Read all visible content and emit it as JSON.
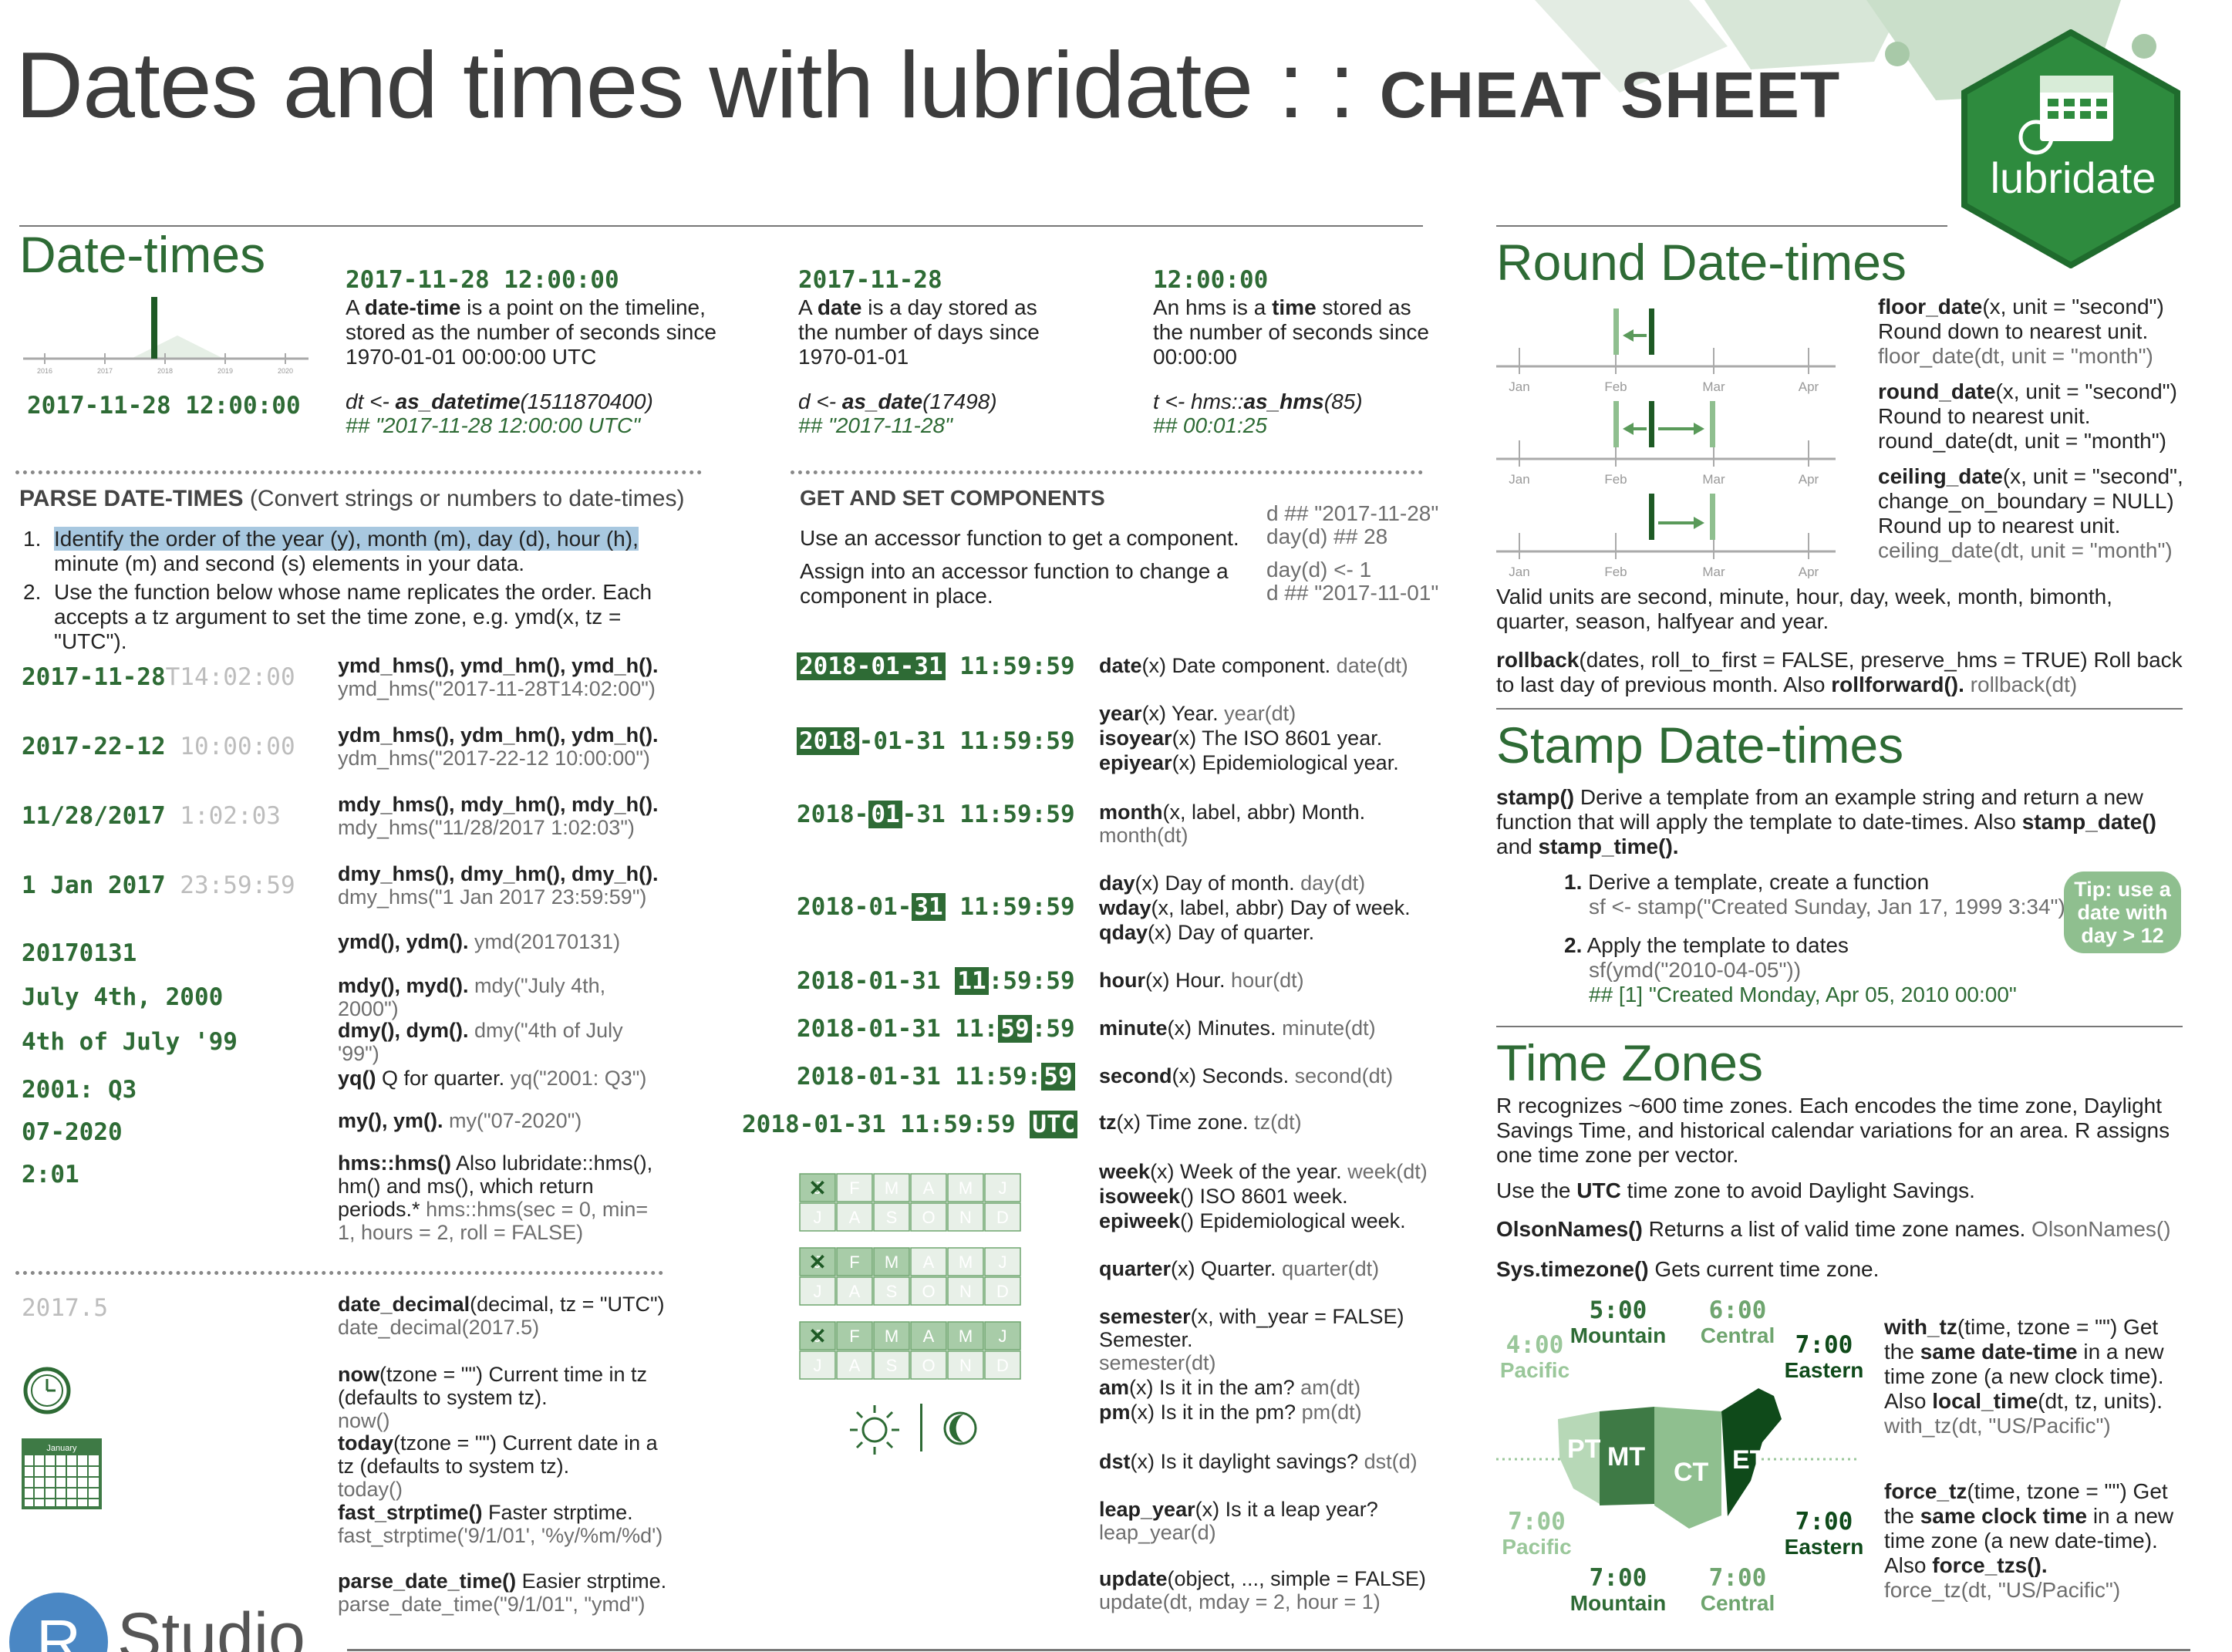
{
  "header": {
    "title_main": "Dates and times with lubridate : : ",
    "title_bold": "CHEAT SHEET",
    "logo_text": "lubridate"
  },
  "datetimes": {
    "heading": "Date-times",
    "timeline_ticks": [
      "2016",
      "2017",
      "2018",
      "2019",
      "2020"
    ],
    "left_example": "2017-11-28 12:00:00",
    "dt": {
      "example": "2017-11-28 12:00:00",
      "desc_a": "A ",
      "desc_b": "date-time",
      "desc_c": " is a point on the timeline, stored as the number of seconds since 1970-01-01 00:00:00 UTC",
      "code_a": "dt <- ",
      "code_b": "as_datetime",
      "code_c": "(1511870400)",
      "result": "## \"2017-11-28 12:00:00 UTC\""
    },
    "d": {
      "example": "2017-11-28",
      "desc_a": "A ",
      "desc_b": "date",
      "desc_c": " is a day stored as the number of days since 1970-01-01",
      "code_a": "d <- ",
      "code_b": "as_date",
      "code_c": "(17498)",
      "result": "## \"2017-11-28\""
    },
    "t": {
      "example": "12:00:00",
      "desc_a": "An hms is a ",
      "desc_b": "time",
      "desc_c": " stored as the number of seconds since 00:00:00",
      "code_a": "t <- hms::",
      "code_b": "as_hms",
      "code_c": "(85)",
      "result": "## 00:01:25"
    }
  },
  "parse": {
    "heading_bold": "PARSE DATE-TIMES",
    "heading_rest": " (Convert strings or numbers to date-times)",
    "step1_num": "1.",
    "step1_hl": "Identify the order of the year (y), month (m), day (d), hour (h),",
    "step1_rest": "minute (m) and second (s) elements in your data.",
    "step2_num": "2.",
    "step2": "Use the function below whose name replicates the order. Each accepts a tz argument to set the time zone, e.g. ymd(x, tz = \"UTC\").",
    "rows": [
      {
        "s1": "2017-11-28",
        "s2": "T14:02:00",
        "fn": "ymd_hms(), ymd_hm(), ymd_h().",
        "ex": "ymd_hms(\"2017-11-28T14:02:00\")"
      },
      {
        "s1": "2017-22-12",
        "s2": " 10:00:00",
        "fn": "ydm_hms(), ydm_hm(), ydm_h().",
        "ex": "ydm_hms(\"2017-22-12 10:00:00\")"
      },
      {
        "s1": "11/28/2017",
        "s2": " 1:02:03",
        "fn": "mdy_hms(), mdy_hm(), mdy_h().",
        "ex": "mdy_hms(\"11/28/2017 1:02:03\")"
      },
      {
        "s1": "1 Jan 2017",
        "s2": " 23:59:59",
        "fn": "dmy_hms(), dmy_hm(), dmy_h().",
        "ex": "dmy_hms(\"1 Jan 2017 23:59:59\")"
      },
      {
        "s1": "20170131",
        "s2": "",
        "fn": "ymd(), ydm().",
        "ex": "ymd(20170131)"
      },
      {
        "s1": "July 4th, 2000",
        "s2": "",
        "fn": "mdy(), myd().",
        "ex": "mdy(\"July 4th, 2000\")"
      },
      {
        "s1": "4th of July '99",
        "s2": "",
        "fn": "dmy(), dym().",
        "ex": "dmy(\"4th of July '99\")"
      },
      {
        "s1": "2001: Q3",
        "s2": "",
        "fn": "yq()",
        "fn_rest": " Q for quarter.",
        "ex": "yq(\"2001: Q3\")"
      },
      {
        "s1": "07-2020",
        "s2": "",
        "fn": "my(), ym().",
        "ex": "my(\"07-2020\")"
      },
      {
        "s1": "2:01",
        "s2": "",
        "fn": "hms::hms()",
        "fn_rest": " Also lubridate::hms(), hm() and ms(), which return periods.*",
        "ex": "hms::hms(sec = 0, min= 1, hours = 2, roll = FALSE)"
      }
    ],
    "extra": [
      {
        "fn": "date_decimal",
        "args": "(decimal, tz = \"UTC\")",
        "ex": "date_decimal(2017.5)"
      },
      {
        "fn": "now",
        "args": "(tzone = \"\")",
        "desc": " Current time in tz (defaults to system tz).",
        "ex": "now()"
      },
      {
        "fn": "today",
        "args": "(tzone = \"\")",
        "desc": " Current date in a tz (defaults to system tz).",
        "ex": "today()"
      },
      {
        "fn": "fast_strptime()",
        "args": "",
        "desc": " Faster strptime.",
        "ex": "fast_strptime('9/1/01', '%y/%m/%d')"
      },
      {
        "fn": "parse_date_time()",
        "args": "",
        "desc": " Easier strptime.",
        "ex": "parse_date_time(\"9/1/01\", \"ymd\")"
      }
    ],
    "decimal_example": "2017.5",
    "calendar_month": "January",
    "rstudio": "Studio",
    "rstudio_r": "R"
  },
  "components": {
    "heading": "GET AND SET COMPONENTS",
    "line1": "Use an accessor function to get a component.",
    "line2": "Assign into an accessor function to change a component in place.",
    "side1": "d ## \"2017-11-28\"",
    "side2": "day(d) ## 28",
    "side3": "day(d) <- 1",
    "side4": "d ## \"2017-11-01\"",
    "rows": [
      {
        "fn": "date",
        "args": "(x)",
        "desc": " Date component.",
        "ex": "date(dt)"
      },
      {
        "fn": "year",
        "args": "(x)",
        "desc": " Year.",
        "ex": "year(dt)"
      },
      {
        "fn": "isoyear",
        "args": "(x)",
        "desc": " The ISO 8601 year.",
        "ex": ""
      },
      {
        "fn": "epiyear",
        "args": "(x)",
        "desc": " Epidemiological year.",
        "ex": ""
      },
      {
        "fn": "month",
        "args": "(x, label, abbr)",
        "desc": " Month.",
        "ex": "month(dt)"
      },
      {
        "fn": "day",
        "args": "(x)",
        "desc": " Day of month.",
        "ex": "day(dt)"
      },
      {
        "fn": "wday",
        "args": "(x, label, abbr)",
        "desc": " Day of week.",
        "ex": ""
      },
      {
        "fn": "qday",
        "args": "(x)",
        "desc": " Day of quarter.",
        "ex": ""
      },
      {
        "fn": "hour",
        "args": "(x)",
        "desc": " Hour.",
        "ex": "hour(dt)"
      },
      {
        "fn": "minute",
        "args": "(x)",
        "desc": " Minutes.",
        "ex": "minute(dt)"
      },
      {
        "fn": "second",
        "args": "(x)",
        "desc": " Seconds.",
        "ex": "second(dt)"
      },
      {
        "fn": "tz",
        "args": "(x)",
        "desc": " Time zone.",
        "ex": "tz(dt)"
      },
      {
        "fn": "week",
        "args": "(x)",
        "desc": " Week of the year.",
        "ex": "week(dt)"
      },
      {
        "fn": "isoweek",
        "args": "()",
        "desc": " ISO 8601 week.",
        "ex": ""
      },
      {
        "fn": "epiweek",
        "args": "()",
        "desc": " Epidemiological week.",
        "ex": ""
      },
      {
        "fn": "quarter",
        "args": "(x)",
        "desc": " Quarter.",
        "ex": "quarter(dt)"
      },
      {
        "fn": "semester",
        "args": "(x, with_year = FALSE)",
        "desc": " Semester.",
        "ex": "semester(dt)"
      },
      {
        "fn": "am",
        "args": "(x)",
        "desc": " Is it in the am?",
        "ex": "am(dt)"
      },
      {
        "fn": "pm",
        "args": "(x)",
        "desc": " Is it in the pm?",
        "ex": "pm(dt)"
      },
      {
        "fn": "dst",
        "args": "(x)",
        "desc": " Is it daylight savings?",
        "ex": "dst(d)"
      },
      {
        "fn": "leap_year",
        "args": "(x)",
        "desc": " Is it a leap year?",
        "ex": "leap_year(d)"
      },
      {
        "fn": "update",
        "args": "(object, ..., simple = FALSE)",
        "desc": "",
        "ex": "update(dt, mday = 2, hour = 1)"
      }
    ],
    "stamp_date": "2018-01-31",
    "stamp_time": "11:59:59",
    "stamp_y": "2018",
    "stamp_ymrest": "-01-31",
    "stamp_m": "01",
    "stamp_d": "31",
    "stamp_h": "11",
    "stamp_mi": "59",
    "stamp_s": "59",
    "stamp_utc": "UTC",
    "stamp_full": "2018-01-31 11:59:59",
    "months_top": [
      "J",
      "F",
      "M",
      "A",
      "M",
      "J"
    ],
    "months_bottom": [
      "J",
      "A",
      "S",
      "O",
      "N",
      "D"
    ]
  },
  "round": {
    "heading": "Round Date-times",
    "axis_labels": [
      "Jan",
      "Feb",
      "Mar",
      "Apr"
    ],
    "f1_name": "floor_date",
    "f1_args": "(x, unit = \"second\")",
    "f1_desc": "Round down to nearest unit.",
    "f1_ex": "floor_date(dt, unit = \"month\")",
    "f2_name": "round_date",
    "f2_args": "(x, unit = \"second\")",
    "f2_desc": "Round to nearest unit.",
    "f2_ex": "round_date(dt, unit = \"month\")",
    "f3_name": "ceiling_date",
    "f3_args": "(x, unit = \"second\", change_on_boundary = NULL)",
    "f3_desc": "Round up to nearest unit.",
    "f3_ex": "ceiling_date(dt, unit = \"month\")",
    "units": "Valid units are second, minute, hour, day, week, month, bimonth, quarter, season, halfyear and year.",
    "rollback_fn": "rollback",
    "rollback_args": "(dates, roll_to_first = FALSE, preserve_hms = TRUE)",
    "rollback_desc": " Roll back to last day of previous month. Also ",
    "rollforward": "rollforward().",
    "rollback_ex": " rollback(dt)"
  },
  "stamp": {
    "heading": "Stamp Date-times",
    "intro_fn": "stamp()",
    "intro": " Derive a template from an example string and return a new function that will apply the template to date-times. Also ",
    "intro_fn2": "stamp_date()",
    "intro_and": " and ",
    "intro_fn3": "stamp_time().",
    "step1_num": "1.",
    "step1": "Derive a template, create a function",
    "step1_code": "sf <- stamp(\"Created Sunday, Jan 17, 1999 3:34\")",
    "step2_num": "2.",
    "step2": "Apply the template to dates",
    "step2_code": "sf(ymd(\"2010-04-05\"))",
    "step2_result": "## [1] \"Created Monday, Apr 05, 2010 00:00\"",
    "tip": "Tip: use a date with day > 12"
  },
  "timezones": {
    "heading": "Time Zones",
    "intro": "R recognizes ~600 time zones. Each encodes the time zone, Daylight Savings Time, and historical calendar variations for an area. R assigns one time zone per vector.",
    "utc_a": "Use the ",
    "utc_b": "UTC",
    "utc_c": " time zone to avoid Daylight Savings.",
    "olson_fn": "OlsonNames()",
    "olson_desc": " Returns a list of valid time zone names.",
    "olson_ex": " OlsonNames()",
    "sys_fn": "Sys.timezone()",
    "sys_desc": " Gets current time zone.",
    "map_labels": [
      "PT",
      "MT",
      "CT",
      "ET"
    ],
    "top": [
      {
        "time": "4:00",
        "zone": "Pacific"
      },
      {
        "time": "5:00",
        "zone": "Mountain"
      },
      {
        "time": "6:00",
        "zone": "Central"
      },
      {
        "time": "7:00",
        "zone": "Eastern"
      }
    ],
    "bottom": [
      {
        "time": "7:00",
        "zone": "Pacific"
      },
      {
        "time": "7:00",
        "zone": "Mountain"
      },
      {
        "time": "7:00",
        "zone": "Central"
      },
      {
        "time": "7:00",
        "zone": "Eastern"
      }
    ],
    "with_tz_fn": "with_tz",
    "with_tz_args": "(time, tzone = \"\")",
    "with_tz_desc_a": " Get the ",
    "with_tz_desc_b": "same date-time",
    "with_tz_desc_c": " in a new time zone (a new clock time). Also ",
    "with_tz_desc_d": "local_time",
    "with_tz_desc_e": "(dt, tz, units).",
    "with_tz_ex": "with_tz(dt, \"US/Pacific\")",
    "force_tz_fn": "force_tz",
    "force_tz_args": "(time, tzone = \"\")",
    "force_tz_desc_a": " Get the ",
    "force_tz_desc_b": "same clock time",
    "force_tz_desc_c": " in a new time zone (a new date-time). Also ",
    "force_tz_desc_d": "force_tzs().",
    "force_tz_ex": "force_tz(dt, \"US/Pacific\")"
  },
  "colors": {
    "dark_green": "#2e6b35",
    "mid_green": "#4f8a56",
    "light_green": "#9ac79a",
    "gray": "#6e6e6e"
  }
}
